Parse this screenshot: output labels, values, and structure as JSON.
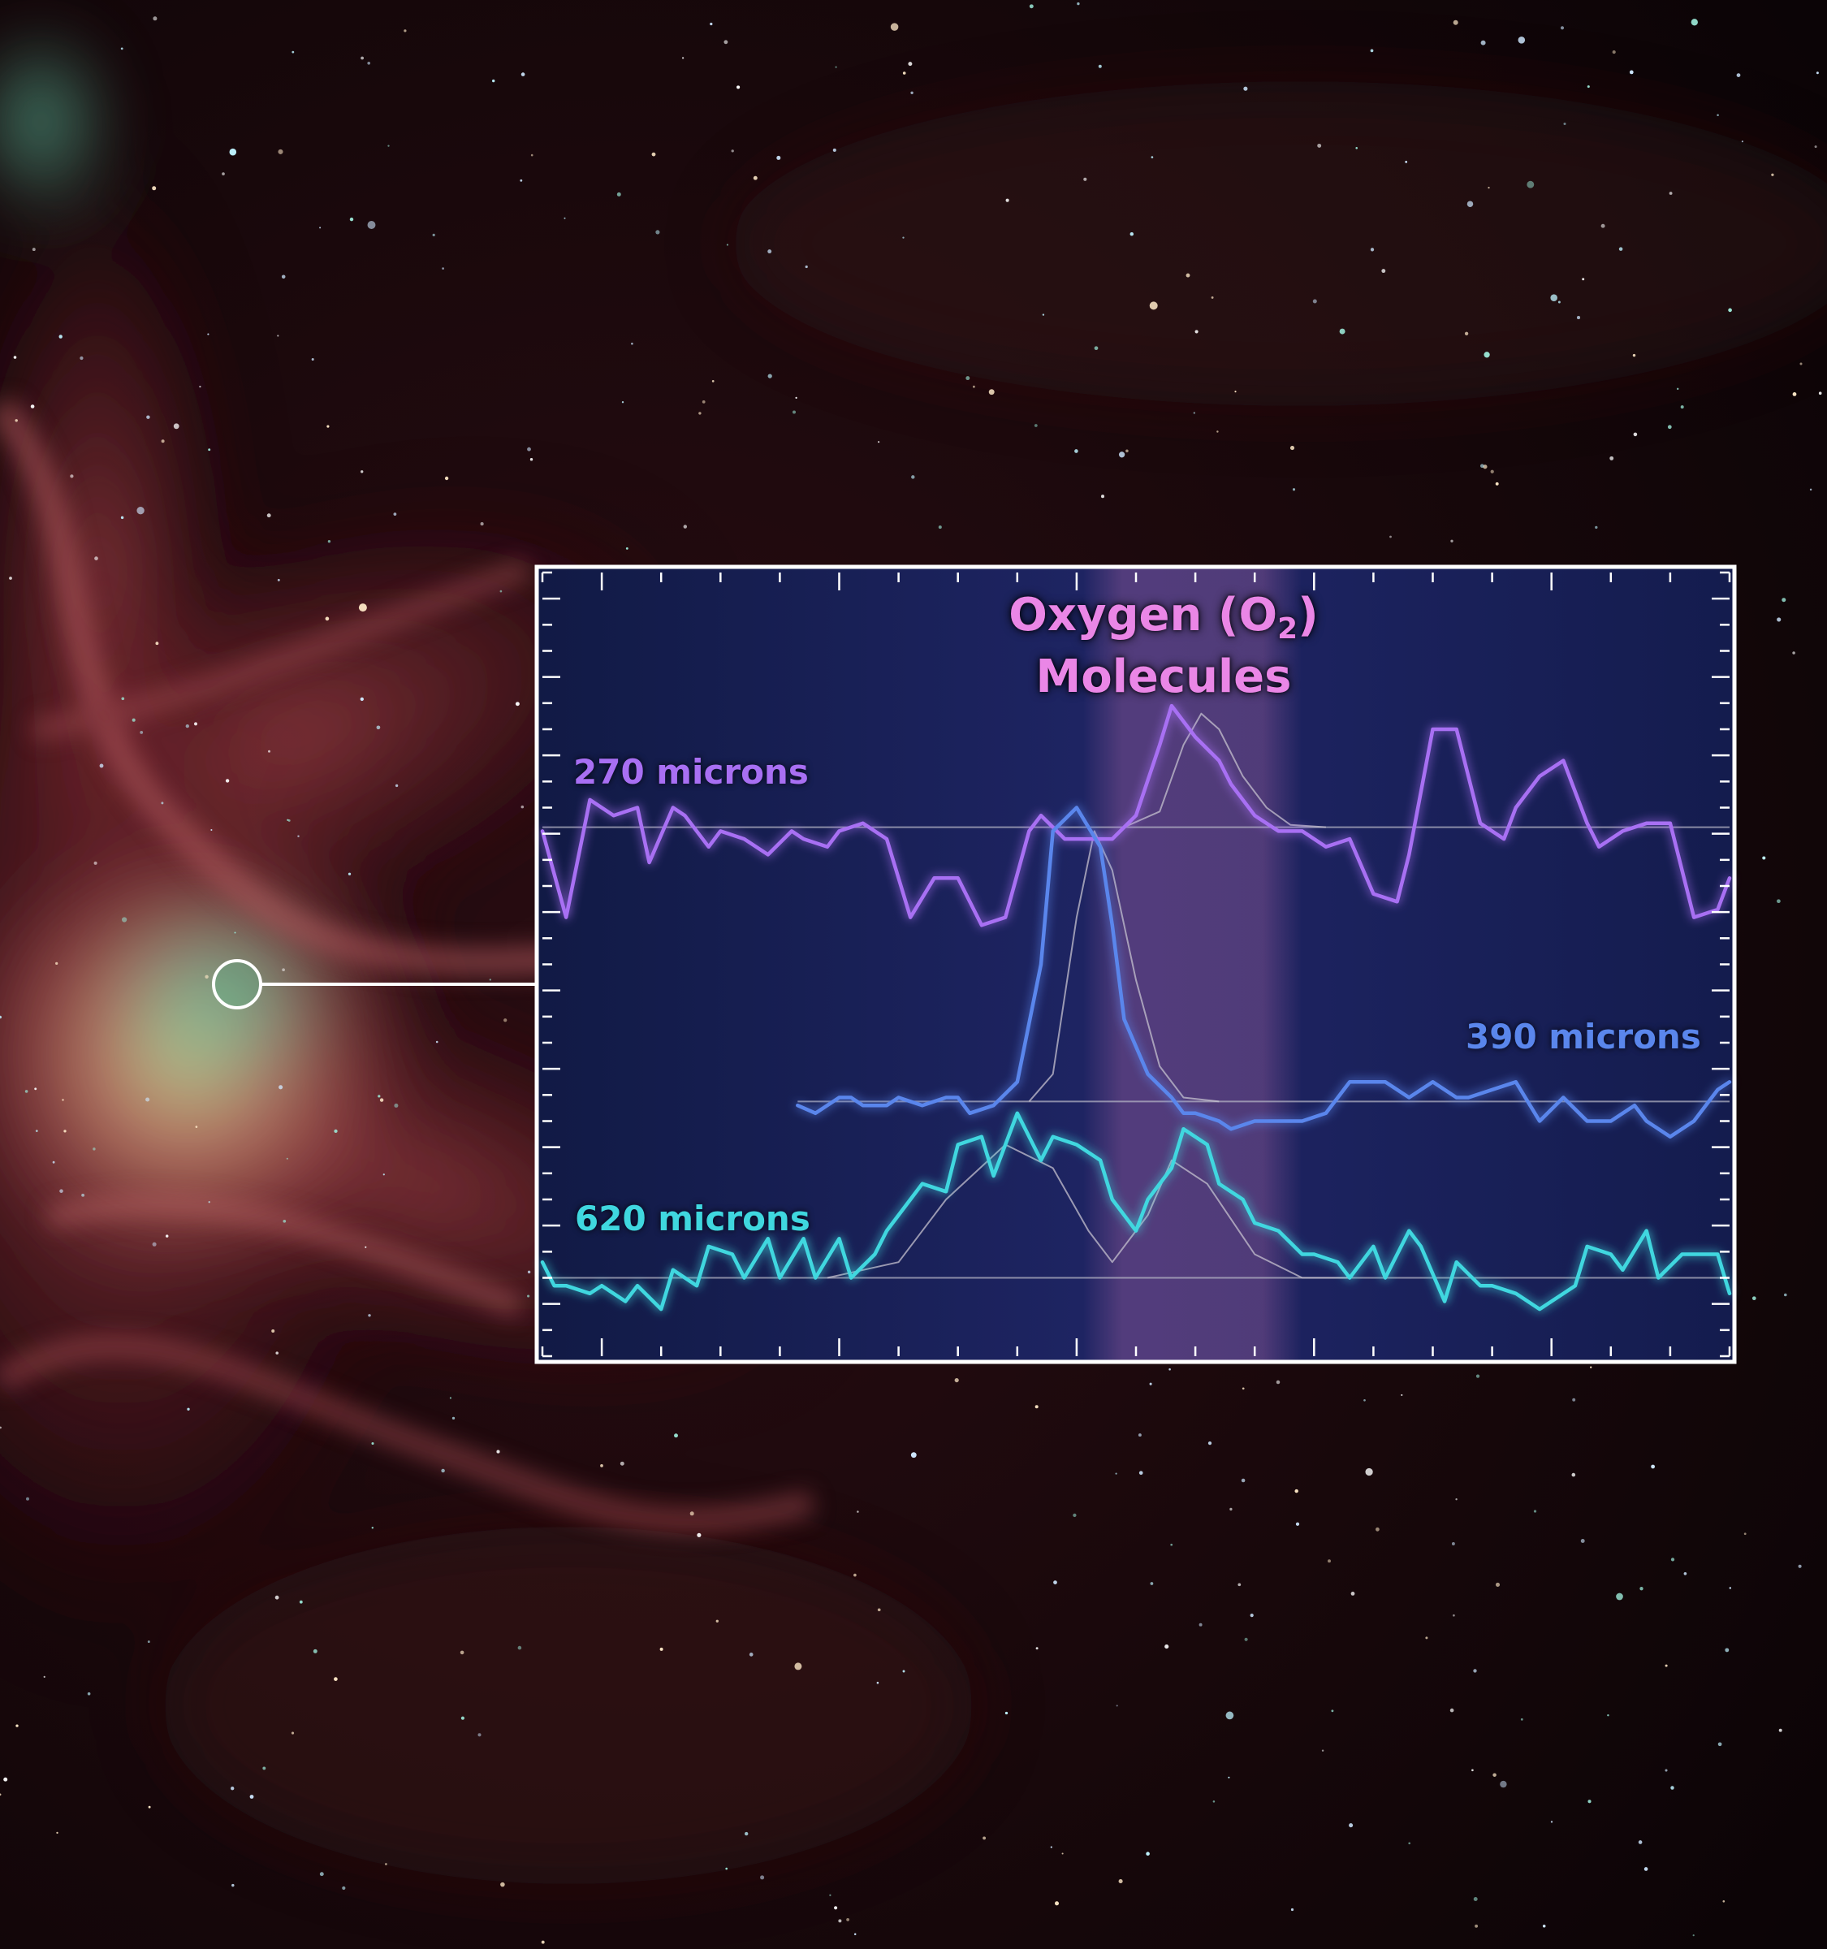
{
  "title": {
    "line1_prefix": "Oxygen (O",
    "line1_sub": "2",
    "line1_suffix": ")",
    "line2": "Molecules"
  },
  "colors": {
    "highlight": "#d77ab8",
    "line_270": "#a86ff3",
    "line_390": "#5a86ec",
    "line_620": "#3fd7df",
    "title": "#ea86e6",
    "frame": "#ffffff"
  },
  "chart_data": {
    "type": "line",
    "title": "Oxygen (O2) Molecules",
    "xlabel": "",
    "ylabel": "",
    "xlim": [
      0,
      100
    ],
    "ylim": [
      0,
      100
    ],
    "grid": false,
    "highlight_band": [
      45.5,
      64
    ],
    "series": [
      {
        "name": "270 microns",
        "label_color": "#a86ff3",
        "baseline": 67.5,
        "x": [
          0,
          2,
          4,
          6,
          8,
          9,
          11,
          12,
          14,
          15,
          17,
          19,
          21,
          22,
          24,
          25,
          27,
          29,
          31,
          33,
          35,
          37,
          39,
          41,
          42,
          44,
          46,
          48,
          50,
          52,
          53,
          55,
          57,
          58,
          60,
          62,
          64,
          66,
          68,
          70,
          72,
          73,
          75,
          77,
          79,
          81,
          82,
          84,
          86,
          88,
          89,
          91,
          93,
          95,
          97,
          99,
          100
        ],
        "y": [
          67,
          56,
          71,
          69,
          70,
          63,
          70,
          69,
          65,
          67,
          66,
          64,
          67,
          66,
          65,
          67,
          68,
          66,
          56,
          61,
          61,
          55,
          56,
          67,
          69,
          66,
          66,
          66,
          69,
          78,
          83,
          79,
          76,
          73,
          69,
          67,
          67,
          65,
          66,
          59,
          58,
          64,
          80,
          80,
          68,
          66,
          70,
          74,
          76,
          68,
          65,
          67,
          68,
          68,
          56,
          57,
          61
        ],
        "fit": [
          [
            49,
            67.5
          ],
          [
            52,
            69.5
          ],
          [
            54,
            78
          ],
          [
            55.5,
            82
          ],
          [
            57,
            80
          ],
          [
            59,
            74
          ],
          [
            61,
            70
          ],
          [
            63,
            67.8
          ],
          [
            66,
            67.5
          ]
        ]
      },
      {
        "name": "390 microns",
        "label_color": "#5a86ec",
        "baseline": 32.5,
        "x": [
          21.5,
          23,
          25,
          26,
          27,
          29,
          30,
          32,
          34,
          35,
          36,
          38,
          40,
          42,
          43,
          45,
          47,
          48,
          49,
          51,
          53,
          54,
          55,
          57,
          58,
          60,
          62,
          64,
          66,
          68,
          69,
          71,
          73,
          75,
          77,
          78,
          80,
          82,
          84,
          86,
          88,
          90,
          92,
          93,
          95,
          97,
          99,
          100
        ],
        "y": [
          32,
          31,
          33,
          33,
          32,
          32,
          33,
          32,
          33,
          33,
          31,
          32,
          35,
          50,
          67,
          70,
          65,
          55,
          43,
          36,
          33,
          31,
          31,
          30,
          29,
          30,
          30,
          30,
          31,
          35,
          35,
          35,
          33,
          35,
          33,
          33,
          34,
          35,
          30,
          33,
          30,
          30,
          32,
          30,
          28,
          30,
          34,
          35
        ],
        "fit": [
          [
            41,
            32.5
          ],
          [
            43,
            36
          ],
          [
            45,
            56
          ],
          [
            46.5,
            67
          ],
          [
            48,
            62
          ],
          [
            50,
            48
          ],
          [
            52,
            37
          ],
          [
            54,
            33
          ],
          [
            57,
            32.5
          ]
        ]
      },
      {
        "name": "620 microns",
        "label_color": "#3fd7df",
        "baseline": 10,
        "x": [
          0,
          1,
          2,
          4,
          5,
          7,
          8,
          10,
          11,
          13,
          14,
          16,
          17,
          19,
          20,
          22,
          23,
          25,
          26,
          28,
          29,
          31,
          32,
          34,
          35,
          37,
          38,
          40,
          42,
          43,
          45,
          47,
          48,
          50,
          51,
          53,
          54,
          56,
          57,
          59,
          60,
          62,
          64,
          65,
          67,
          68,
          70,
          71,
          73,
          74,
          76,
          77,
          79,
          80,
          82,
          84,
          85,
          87,
          88,
          90,
          91,
          93,
          94,
          96,
          97,
          99,
          100
        ],
        "y": [
          12,
          9,
          9,
          8,
          9,
          7,
          9,
          6,
          11,
          9,
          14,
          13,
          10,
          15,
          10,
          15,
          10,
          15,
          10,
          13,
          16,
          20,
          22,
          21,
          27,
          28,
          23,
          31,
          25,
          28,
          27,
          25,
          20,
          16,
          20,
          24,
          29,
          27,
          22,
          20,
          17,
          16,
          13,
          13,
          12,
          10,
          14,
          10,
          16,
          14,
          7,
          12,
          9,
          9,
          8,
          6,
          7,
          9,
          14,
          13,
          11,
          16,
          10,
          13,
          13,
          13,
          8
        ],
        "fit": [
          [
            24,
            10
          ],
          [
            30,
            12
          ],
          [
            34,
            20
          ],
          [
            39,
            27
          ],
          [
            43,
            24
          ],
          [
            46,
            16
          ],
          [
            48,
            12
          ],
          [
            51,
            18
          ],
          [
            53,
            25
          ],
          [
            56,
            22
          ],
          [
            60,
            13
          ],
          [
            64,
            10
          ],
          [
            68,
            10
          ]
        ]
      }
    ]
  }
}
